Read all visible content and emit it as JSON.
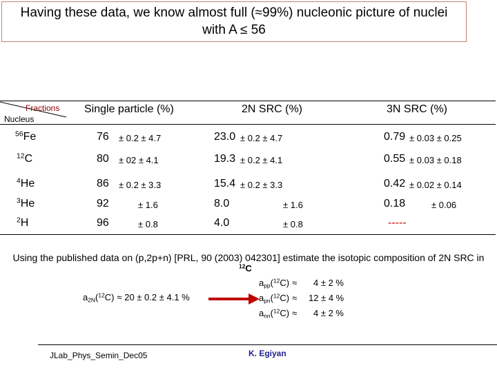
{
  "title": {
    "lines": [
      "Having these data, we know almost full (≈99%) nucleonic picture of nuclei",
      "with A ≤ 56"
    ]
  },
  "table": {
    "corner": {
      "top": "Fractions",
      "bottom": "Nucleus"
    },
    "headers": [
      "Single particle (%)",
      "2N SRC (%)",
      "3N SRC (%)"
    ],
    "rows": [
      {
        "nucleus": {
          "mass": "56",
          "symbol": "Fe"
        },
        "cells": [
          {
            "value": "76",
            "error": "± 0.2 ± 4.7"
          },
          {
            "value": "23.0",
            "error": "± 0.2 ± 4.7"
          },
          {
            "value": "0.79",
            "error": "± 0.03 ± 0.25"
          }
        ]
      },
      {
        "nucleus": {
          "mass": "12",
          "symbol": "C"
        },
        "cells": [
          {
            "value": "80",
            "error": "± 02 ± 4.1"
          },
          {
            "value": "19.3",
            "error": "± 0.2 ± 4.1"
          },
          {
            "value": "0.55",
            "error": "± 0.03 ± 0.18"
          }
        ]
      },
      {
        "nucleus": {
          "mass": "4",
          "symbol": "He"
        },
        "cells": [
          {
            "value": "86",
            "error": "± 0.2 ± 3.3"
          },
          {
            "value": "15.4",
            "error": "± 0.2 ± 3.3"
          },
          {
            "value": "0.42",
            "error": "± 0.02 ± 0.14"
          }
        ]
      },
      {
        "nucleus": {
          "mass": "3",
          "symbol": "He"
        },
        "cells": [
          {
            "value": "92",
            "error": "± 1.6"
          },
          {
            "value": "8.0",
            "error": "± 1.6"
          },
          {
            "value": "0.18",
            "error": "± 0.06"
          }
        ]
      },
      {
        "nucleus": {
          "mass": "2",
          "symbol": "H"
        },
        "cells": [
          {
            "value": "96",
            "error": "± 0.8"
          },
          {
            "value": "4.0",
            "error": "± 0.8"
          },
          {
            "value": "-----"
          }
        ]
      }
    ]
  },
  "note": {
    "text": "Using the published data on (p,2p+n) [PRL, 90 (2003) 042301]  estimate the isotopic composition of 2N SRC in",
    "nucleus": {
      "mass": "12",
      "symbol": "C"
    }
  },
  "composition": {
    "total": {
      "a": "a",
      "sub": "2N",
      "open": "(",
      "mass": "12",
      "rest": "C)",
      "value": "≈ 20 ± 0.2 ± 4.1 %"
    },
    "pairs": [
      {
        "a": "a",
        "sub": "pp",
        "open": "(",
        "mass": "12",
        "rest": "C)",
        "approx": "≈",
        "value": "4 ± 2 %"
      },
      {
        "a": "a",
        "sub": "pn",
        "open": "(",
        "mass": "12",
        "rest": "C)",
        "approx": "≈",
        "value": "12 ± 4 %"
      },
      {
        "a": "a",
        "sub": "nn",
        "open": "(",
        "mass": "12",
        "rest": "C)",
        "approx": "≈",
        "value": "4 ± 2 %"
      }
    ]
  },
  "footer": {
    "left": "JLab_Phys_Semin_Dec05",
    "right": "K. Egiyan"
  }
}
